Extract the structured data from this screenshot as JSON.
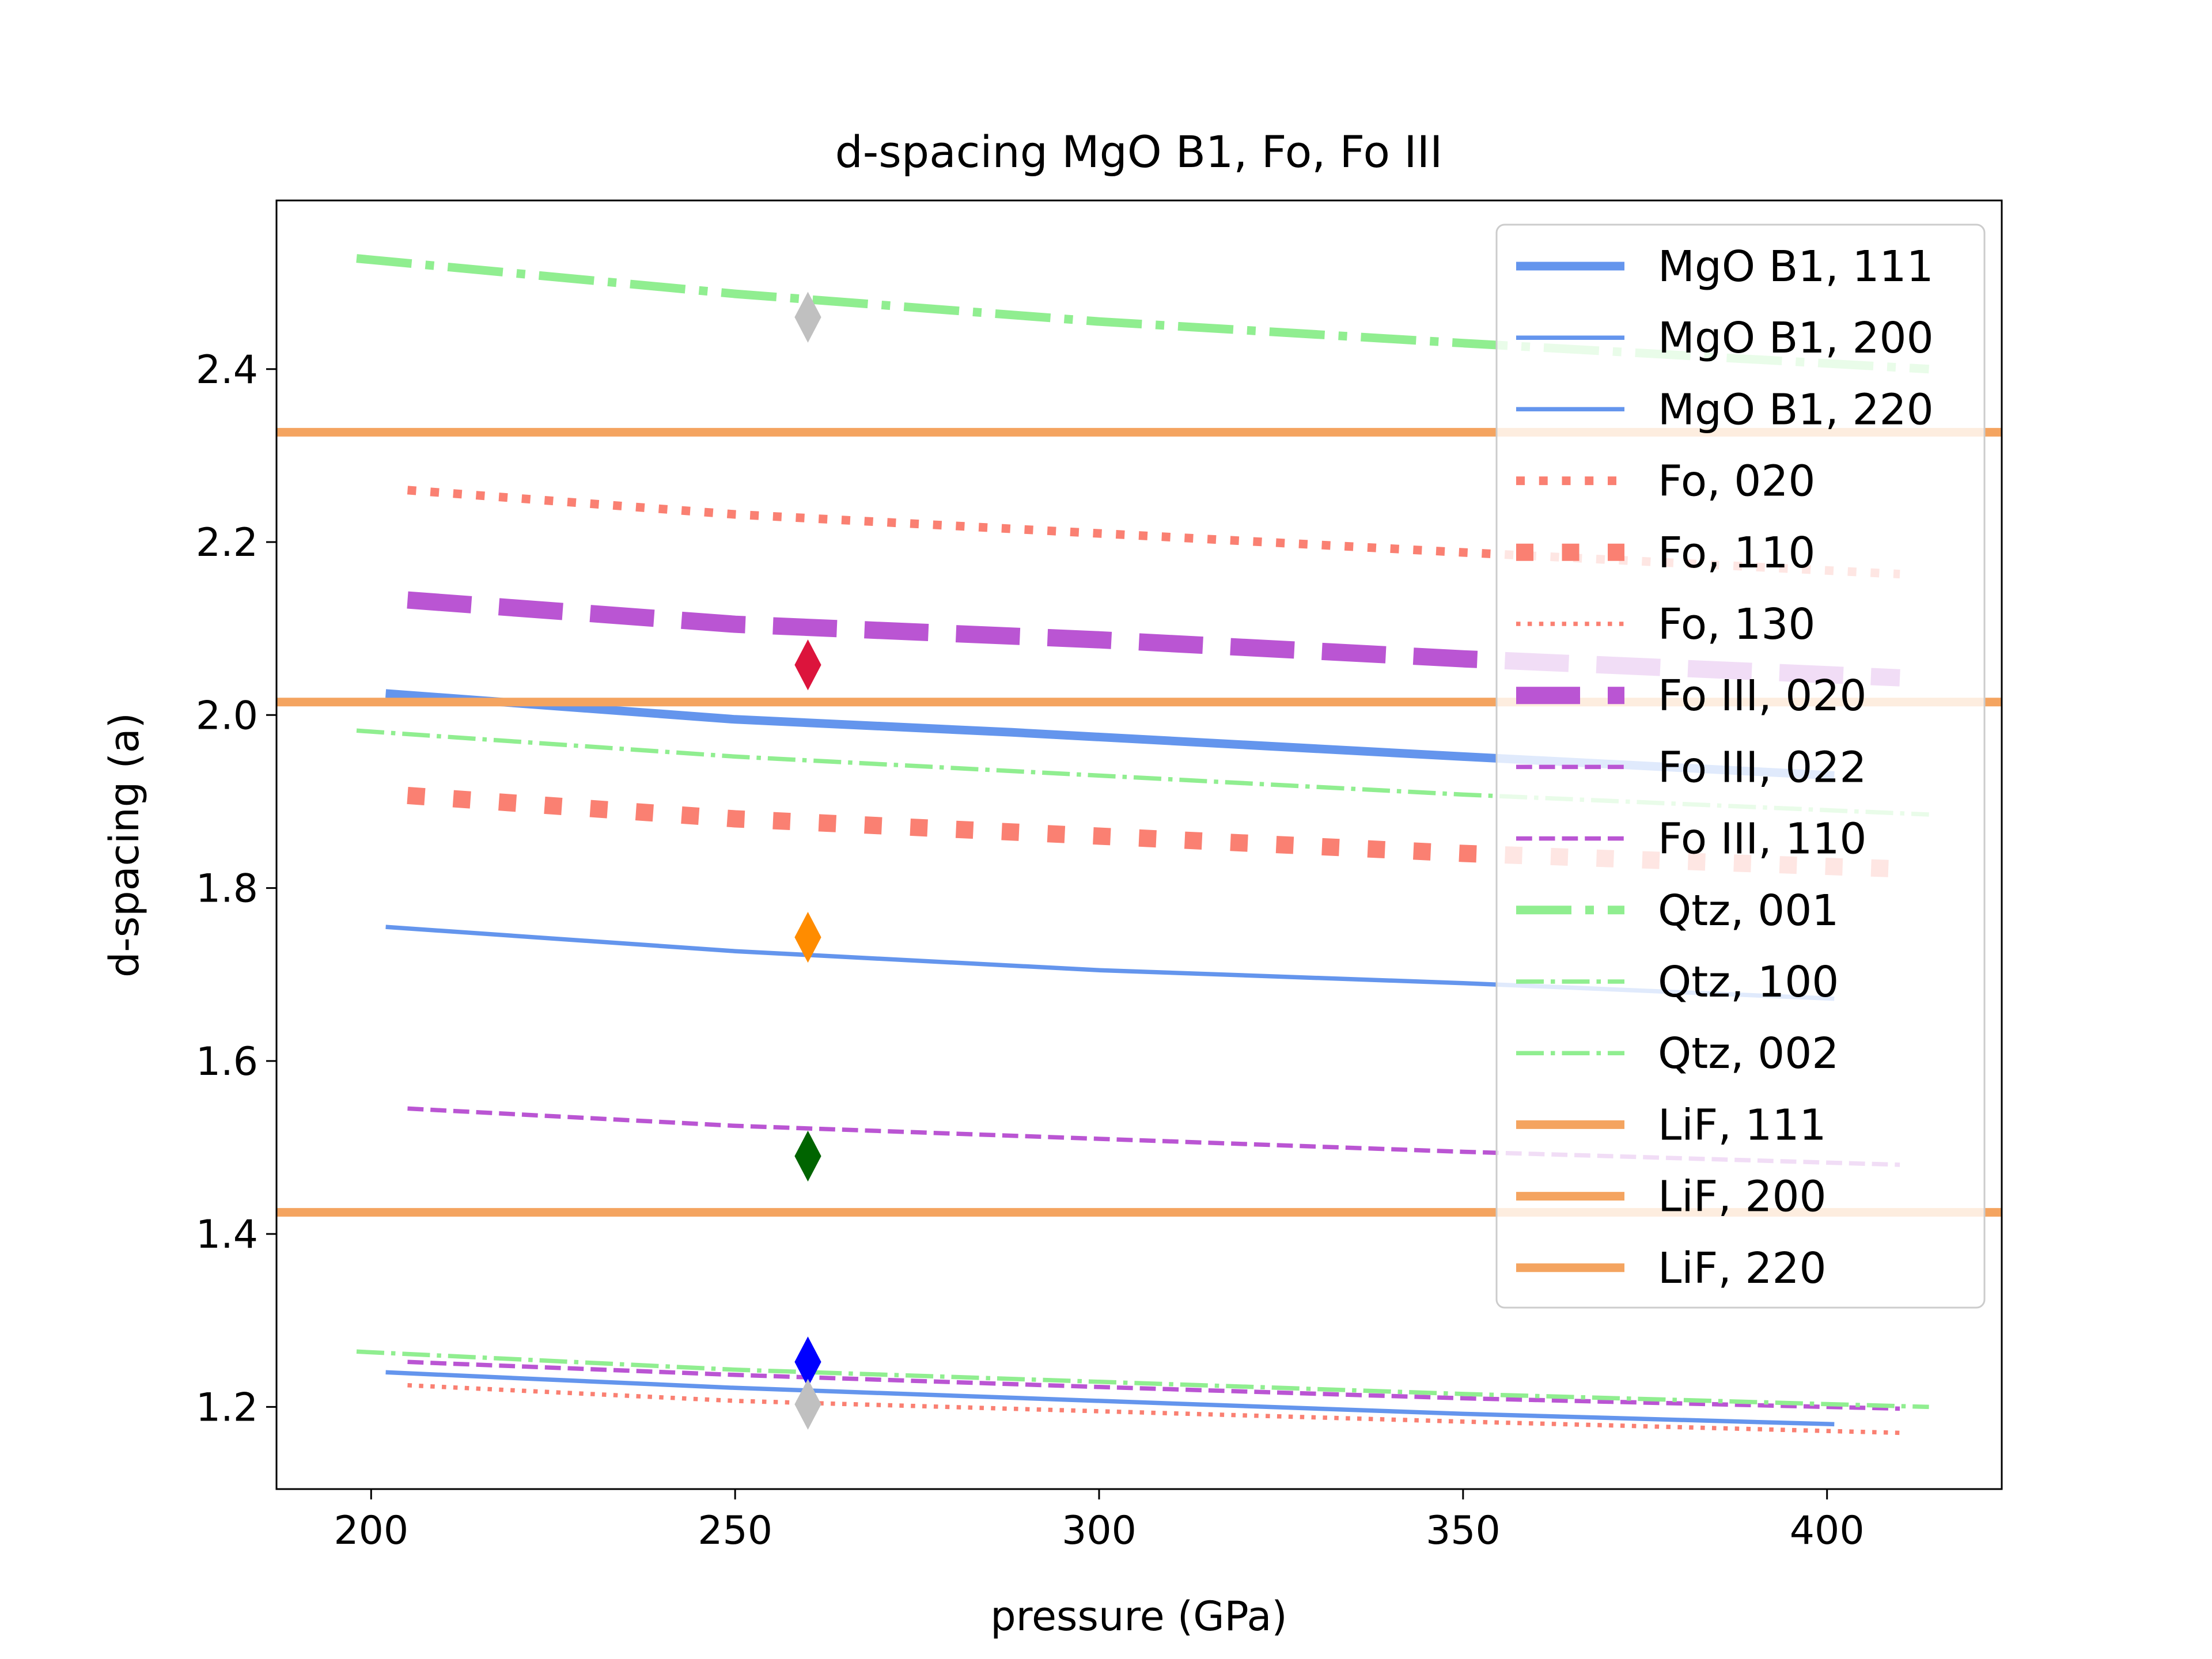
{
  "chart_data": {
    "type": "line",
    "title": "d-spacing MgO B1, Fo, Fo III",
    "xlabel": "pressure (GPa)",
    "ylabel": "d-spacing (a)",
    "xlim": [
      187,
      424
    ],
    "ylim": [
      1.105,
      2.595
    ],
    "xticks": [
      {
        "value": 200,
        "label": "200"
      },
      {
        "value": 250,
        "label": "250"
      },
      {
        "value": 300,
        "label": "300"
      },
      {
        "value": 350,
        "label": "350"
      },
      {
        "value": 400,
        "label": "400"
      }
    ],
    "yticks": [
      {
        "value": 1.2,
        "label": "1.2"
      },
      {
        "value": 1.4,
        "label": "1.4"
      },
      {
        "value": 1.6,
        "label": "1.6"
      },
      {
        "value": 1.8,
        "label": "1.8"
      },
      {
        "value": 2.0,
        "label": "2.0"
      },
      {
        "value": 2.2,
        "label": "2.2"
      },
      {
        "value": 2.4,
        "label": "2.4"
      }
    ],
    "grid": false,
    "legend_position": "upper right",
    "series": [
      {
        "name": "MgO B1, 111",
        "color": "#6495ed",
        "width": 3,
        "dash": "solid",
        "x": [
          202,
          250,
          288,
          350,
          401
        ],
        "y": [
          2.025,
          1.995,
          1.98,
          1.952,
          1.93
        ]
      },
      {
        "name": "MgO B1, 200",
        "color": "#6495ed",
        "width": 1.5,
        "dash": "solid",
        "x": [
          202,
          250,
          300,
          350,
          401
        ],
        "y": [
          1.755,
          1.727,
          1.705,
          1.69,
          1.672
        ]
      },
      {
        "name": "MgO B1, 220",
        "color": "#6495ed",
        "width": 1.5,
        "dash": "solid",
        "x": [
          202,
          250,
          300,
          350,
          401
        ],
        "y": [
          1.24,
          1.222,
          1.207,
          1.192,
          1.18
        ]
      },
      {
        "name": "Fo, 020",
        "color": "#fa8072",
        "width": 3,
        "dash": "dotted",
        "x": [
          205,
          250,
          300,
          350,
          410
        ],
        "y": [
          2.26,
          2.232,
          2.21,
          2.188,
          2.163
        ]
      },
      {
        "name": "Fo, 110",
        "color": "#fa8072",
        "width": 6,
        "dash": "dotted",
        "x": [
          205,
          250,
          300,
          350,
          410
        ],
        "y": [
          1.907,
          1.88,
          1.86,
          1.84,
          1.822
        ]
      },
      {
        "name": "Fo, 130",
        "color": "#fa8072",
        "width": 1.5,
        "dash": "dotted",
        "x": [
          205,
          250,
          300,
          350,
          410
        ],
        "y": [
          1.225,
          1.207,
          1.195,
          1.183,
          1.17
        ]
      },
      {
        "name": "Fo III, 020",
        "color": "#ba55d3",
        "width": 6,
        "dash": "dashed",
        "x": [
          205,
          250,
          300,
          350,
          410
        ],
        "y": [
          2.133,
          2.105,
          2.087,
          2.065,
          2.043
        ]
      },
      {
        "name": "Fo III, 022",
        "color": "#ba55d3",
        "width": 1.5,
        "dash": "dashed",
        "x": [
          205,
          250,
          300,
          350,
          410
        ],
        "y": [
          1.545,
          1.525,
          1.51,
          1.495,
          1.48
        ]
      },
      {
        "name": "Fo III, 110",
        "color": "#ba55d3",
        "width": 1.5,
        "dash": "dashed",
        "x": [
          205,
          250,
          300,
          350,
          410
        ],
        "y": [
          1.252,
          1.237,
          1.223,
          1.21,
          1.198
        ]
      },
      {
        "name": "Qtz, 001",
        "color": "#90ee90",
        "width": 3,
        "dash": "dashdot",
        "x": [
          198,
          250,
          300,
          350,
          414
        ],
        "y": [
          2.528,
          2.487,
          2.455,
          2.43,
          2.4
        ]
      },
      {
        "name": "Qtz, 100",
        "color": "#90ee90",
        "width": 1.5,
        "dash": "dashdot",
        "x": [
          198,
          250,
          300,
          350,
          414
        ],
        "y": [
          1.982,
          1.952,
          1.93,
          1.908,
          1.885
        ]
      },
      {
        "name": "Qtz, 002",
        "color": "#90ee90",
        "width": 1.5,
        "dash": "dashdot",
        "x": [
          198,
          250,
          300,
          350,
          414
        ],
        "y": [
          1.264,
          1.243,
          1.229,
          1.215,
          1.2
        ]
      },
      {
        "name": "LiF, 111",
        "color": "#f4a460",
        "width": 3,
        "dash": "solid",
        "hline": 2.327
      },
      {
        "name": "LiF, 200",
        "color": "#f4a460",
        "width": 3,
        "dash": "solid",
        "hline": 2.015
      },
      {
        "name": "LiF, 220",
        "color": "#f4a460",
        "width": 3,
        "dash": "solid",
        "hline": 1.425
      }
    ],
    "markers": [
      {
        "x": 260,
        "y": 2.46,
        "color": "#c0c0c0"
      },
      {
        "x": 260,
        "y": 2.058,
        "color": "#dc143c"
      },
      {
        "x": 260,
        "y": 1.743,
        "color": "#ff8c00"
      },
      {
        "x": 260,
        "y": 1.49,
        "color": "#006400"
      },
      {
        "x": 260,
        "y": 1.252,
        "color": "#0000ff"
      },
      {
        "x": 260,
        "y": 1.203,
        "color": "#c0c0c0"
      }
    ]
  }
}
